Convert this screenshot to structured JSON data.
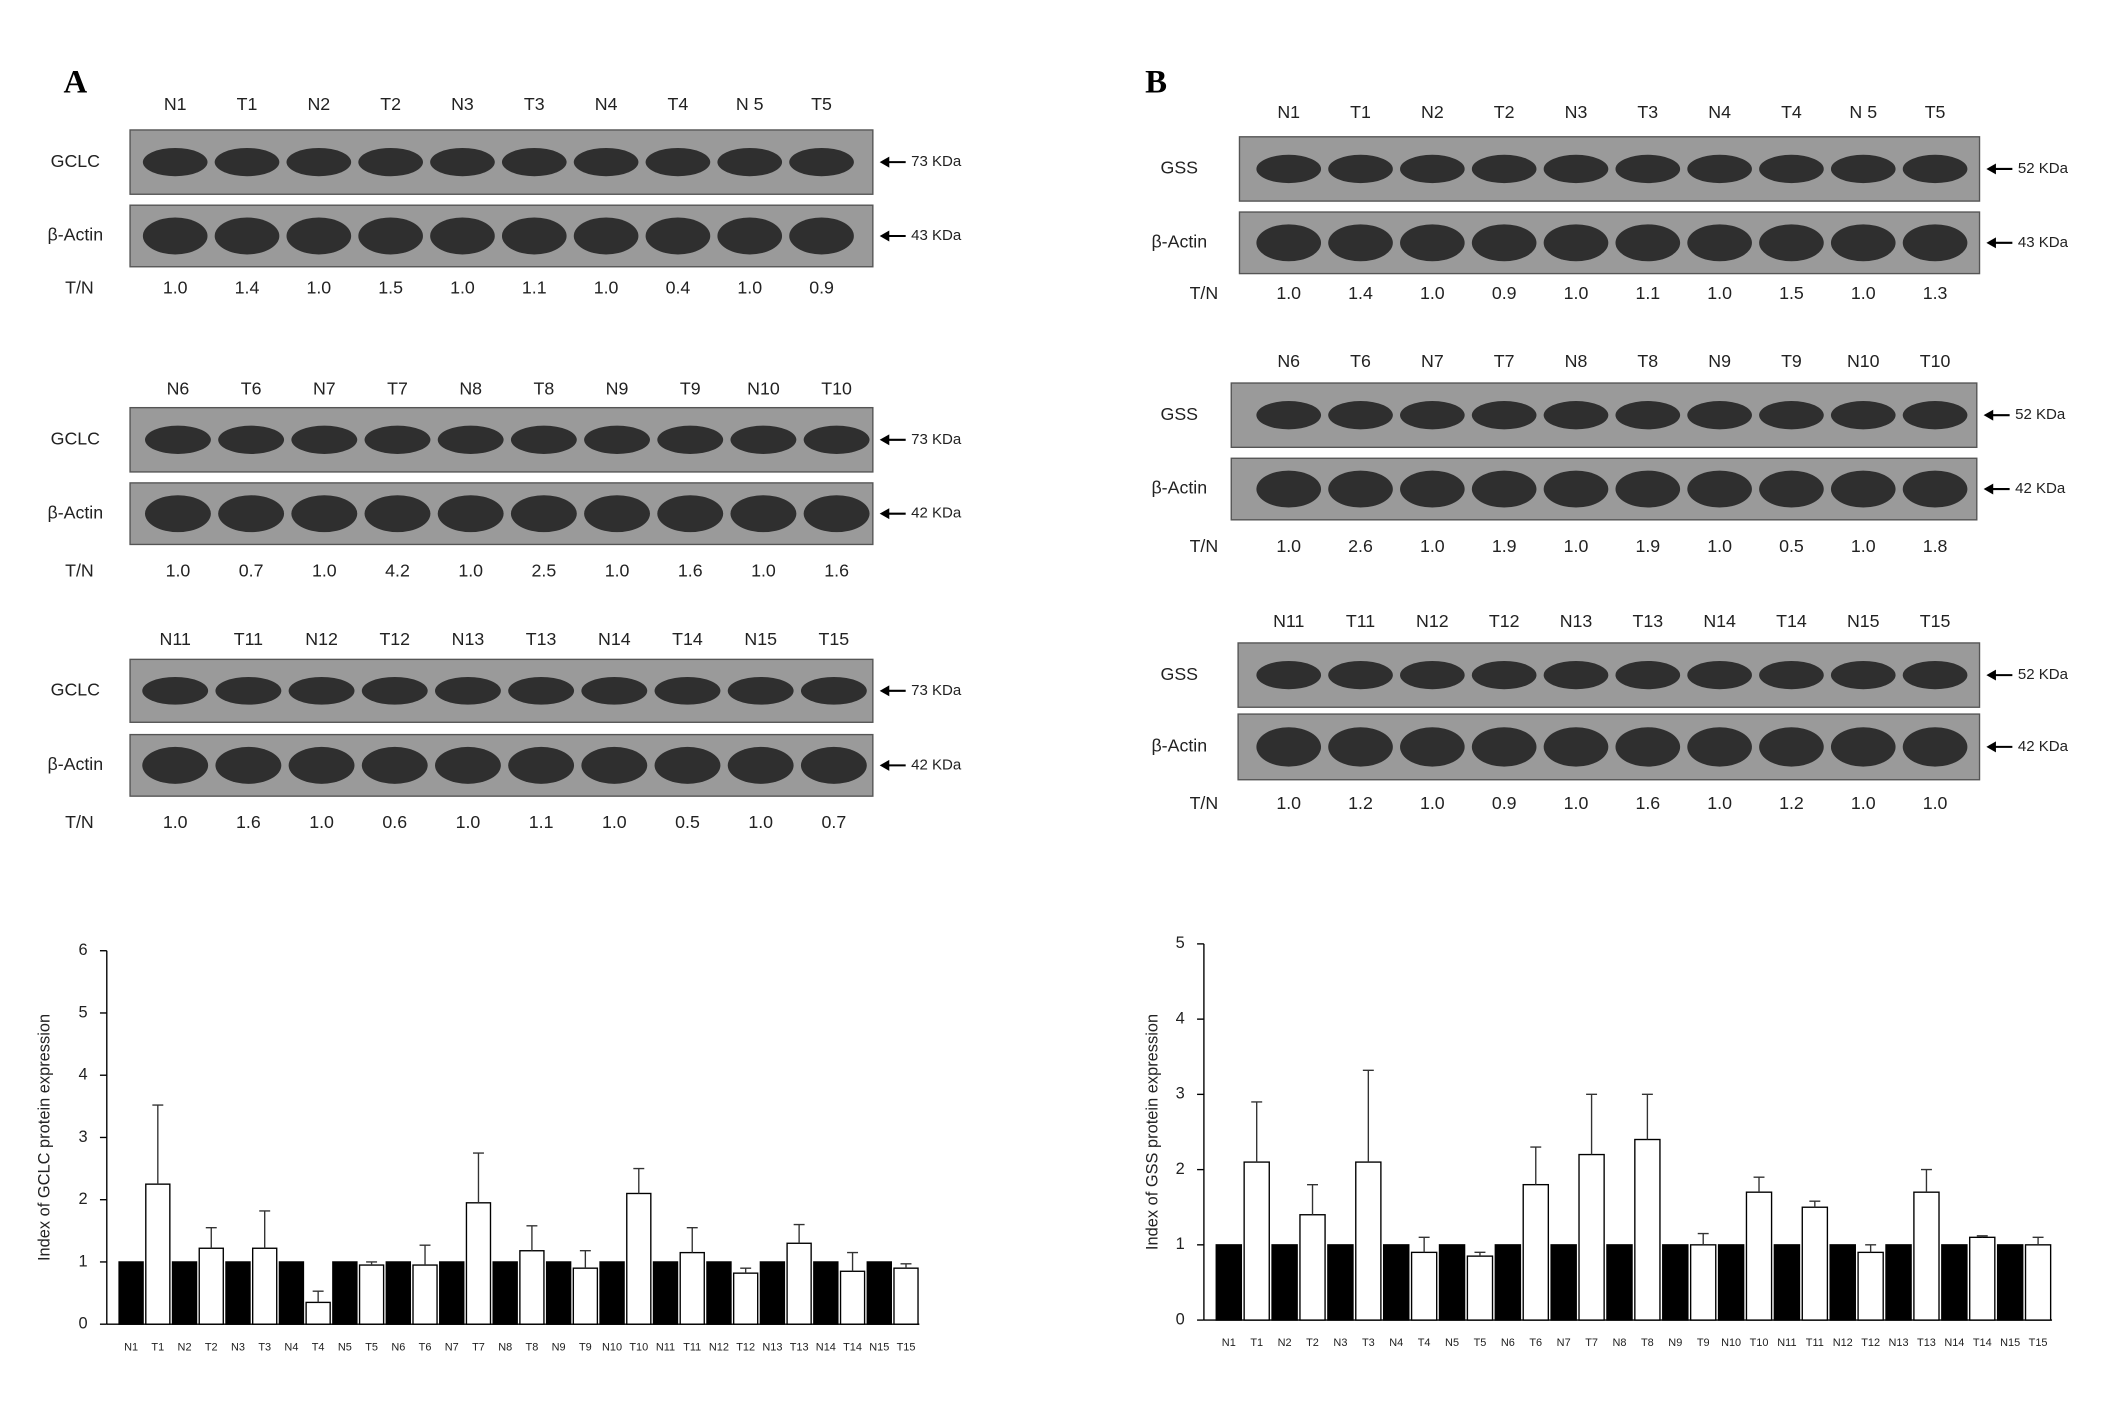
{
  "panels": [
    {
      "label": "A",
      "blots": [
        {
          "lanes": [
            "N1",
            "T1",
            "N2",
            "T2",
            "N3",
            "T3",
            "N4",
            "T4",
            "N 5",
            "T5"
          ],
          "rows": [
            {
              "name": "GCLC",
              "size": "73 KDa"
            },
            {
              "name": "β-Actin",
              "size": "43 KDa"
            }
          ],
          "ratio_label": "T/N",
          "ratios": [
            "1.0",
            "1.4",
            "1.0",
            "1.5",
            "1.0",
            "1.1",
            "1.0",
            "0.4",
            "1.0",
            "0.9"
          ]
        },
        {
          "lanes": [
            "N6",
            "T6",
            "N7",
            "T7",
            "N8",
            "T8",
            "N9",
            "T9",
            "N10",
            "T10"
          ],
          "rows": [
            {
              "name": "GCLC",
              "size": "73 KDa"
            },
            {
              "name": "β-Actin",
              "size": "42 KDa"
            }
          ],
          "ratio_label": "T/N",
          "ratios": [
            "1.0",
            "0.7",
            "1.0",
            "4.2",
            "1.0",
            "2.5",
            "1.0",
            "1.6",
            "1.0",
            "1.6"
          ]
        },
        {
          "lanes": [
            "N11",
            "T11",
            "N12",
            "T12",
            "N13",
            "T13",
            "N14",
            "T14",
            "N15",
            "T15"
          ],
          "rows": [
            {
              "name": "GCLC",
              "size": "73 KDa"
            },
            {
              "name": "β-Actin",
              "size": "42 KDa"
            }
          ],
          "ratio_label": "T/N",
          "ratios": [
            "1.0",
            "1.6",
            "1.0",
            "0.6",
            "1.0",
            "1.1",
            "1.0",
            "0.5",
            "1.0",
            "0.7"
          ]
        }
      ]
    },
    {
      "label": "B",
      "blots": [
        {
          "lanes": [
            "N1",
            "T1",
            "N2",
            "T2",
            "N3",
            "T3",
            "N4",
            "T4",
            "N 5",
            "T5"
          ],
          "rows": [
            {
              "name": "GSS",
              "size": "52 KDa"
            },
            {
              "name": "β-Actin",
              "size": "43 KDa"
            }
          ],
          "ratio_label": "T/N",
          "ratios": [
            "1.0",
            "1.4",
            "1.0",
            "0.9",
            "1.0",
            "1.1",
            "1.0",
            "1.5",
            "1.0",
            "1.3"
          ]
        },
        {
          "lanes": [
            "N6",
            "T6",
            "N7",
            "T7",
            "N8",
            "T8",
            "N9",
            "T9",
            "N10",
            "T10"
          ],
          "rows": [
            {
              "name": "GSS",
              "size": "52 KDa"
            },
            {
              "name": "β-Actin",
              "size": "42 KDa"
            }
          ],
          "ratio_label": "T/N",
          "ratios": [
            "1.0",
            "2.6",
            "1.0",
            "1.9",
            "1.0",
            "1.9",
            "1.0",
            "0.5",
            "1.0",
            "1.8"
          ]
        },
        {
          "lanes": [
            "N11",
            "T11",
            "N12",
            "T12",
            "N13",
            "T13",
            "N14",
            "T14",
            "N15",
            "T15"
          ],
          "rows": [
            {
              "name": "GSS",
              "size": "52 KDa"
            },
            {
              "name": "β-Actin",
              "size": "42 KDa"
            }
          ],
          "ratio_label": "T/N",
          "ratios": [
            "1.0",
            "1.2",
            "1.0",
            "0.9",
            "1.0",
            "1.6",
            "1.0",
            "1.2",
            "1.0",
            "1.0"
          ]
        }
      ]
    }
  ],
  "chart_data": [
    {
      "type": "bar",
      "ylabel": "Index of GCLC protein expression",
      "categories": [
        "N1",
        "T1",
        "N2",
        "T2",
        "N3",
        "T3",
        "N4",
        "T4",
        "N5",
        "T5",
        "N6",
        "T6",
        "N7",
        "T7",
        "N8",
        "T8",
        "N9",
        "T9",
        "N10",
        "T10",
        "N11",
        "T11",
        "N12",
        "T12",
        "N13",
        "T13",
        "N14",
        "T14",
        "N15",
        "T15"
      ],
      "values": [
        1,
        2.25,
        1,
        1.22,
        1,
        1.22,
        1,
        0.35,
        1,
        0.95,
        1,
        0.95,
        1,
        1.95,
        1,
        1.18,
        1,
        0.9,
        1,
        2.1,
        1,
        1.15,
        1,
        0.82,
        1,
        1.3,
        1,
        0.85,
        1,
        0.9
      ],
      "errors": [
        null,
        1.27,
        null,
        0.33,
        null,
        0.6,
        null,
        0.18,
        null,
        0.05,
        null,
        0.32,
        null,
        0.8,
        null,
        0.4,
        null,
        0.28,
        null,
        0.4,
        null,
        0.4,
        null,
        0.08,
        null,
        0.3,
        null,
        0.3,
        null,
        0.07
      ],
      "colors": [
        "#000000",
        "#ffffff"
      ],
      "ylim": [
        0,
        6
      ],
      "yticks": [
        0,
        1,
        2,
        3,
        4,
        5,
        6
      ]
    },
    {
      "type": "bar",
      "ylabel": "Index of GSS protein expression",
      "categories": [
        "N1",
        "T1",
        "N2",
        "T2",
        "N3",
        "T3",
        "N4",
        "T4",
        "N5",
        "T5",
        "N6",
        "T6",
        "N7",
        "T7",
        "N8",
        "T8",
        "N9",
        "T9",
        "N10",
        "T10",
        "N11",
        "T11",
        "N12",
        "T12",
        "N13",
        "T13",
        "N14",
        "T14",
        "N15",
        "T15"
      ],
      "values": [
        1,
        2.1,
        1,
        1.4,
        1,
        2.1,
        1,
        0.9,
        1,
        0.85,
        1,
        1.8,
        1,
        2.2,
        1,
        2.4,
        1,
        1.0,
        1,
        1.7,
        1,
        1.5,
        1,
        0.9,
        1,
        1.7,
        1,
        1.1,
        1,
        1.0
      ],
      "errors": [
        null,
        0.8,
        null,
        0.4,
        null,
        1.22,
        null,
        0.2,
        null,
        0.05,
        null,
        0.5,
        null,
        0.8,
        null,
        0.6,
        null,
        0.15,
        null,
        0.2,
        null,
        0.08,
        null,
        0.1,
        null,
        0.3,
        null,
        0.02,
        null,
        0.1
      ],
      "colors": [
        "#000000",
        "#ffffff"
      ],
      "ylim": [
        0,
        5
      ],
      "yticks": [
        0,
        1,
        2,
        3,
        4,
        5
      ]
    }
  ]
}
